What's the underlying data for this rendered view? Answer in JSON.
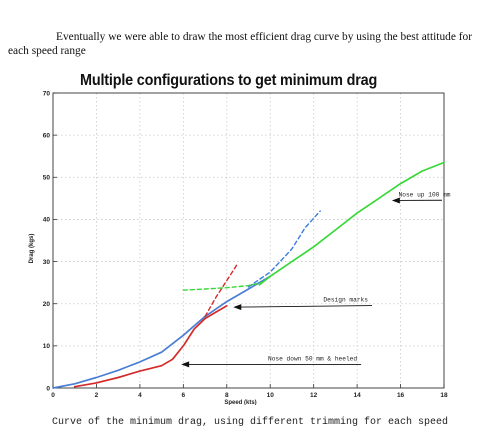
{
  "intro_text": "Eventually we were able to draw the most efficient drag curve by using the best attitude for each speed range",
  "caption": "Curve of the minimum drag, using different trimming for each speed",
  "chart_data": {
    "type": "line",
    "title": "Multiple configurations to get minimum drag",
    "xlabel": "Speed (kts)",
    "ylabel": "Drag (kgs)",
    "xlim": [
      0,
      18
    ],
    "ylim": [
      0,
      70
    ],
    "xticks": [
      0,
      2,
      4,
      6,
      8,
      10,
      12,
      14,
      16,
      18
    ],
    "yticks": [
      0,
      10,
      20,
      30,
      40,
      50,
      60,
      70
    ],
    "grid": true,
    "series": [
      {
        "style": "solid",
        "color": "#4a7ed4",
        "points": [
          [
            0,
            0
          ],
          [
            1,
            1
          ],
          [
            2,
            2.5
          ],
          [
            3,
            4.2
          ],
          [
            4,
            6.2
          ],
          [
            5,
            8.5
          ],
          [
            6,
            12.5
          ],
          [
            7,
            17
          ],
          [
            8,
            20.5
          ],
          [
            9,
            23.5
          ],
          [
            10,
            26.5
          ]
        ]
      },
      {
        "style": "solid",
        "color": "#d42a2a",
        "points": [
          [
            1,
            0.3
          ],
          [
            2,
            1.2
          ],
          [
            3,
            2.5
          ],
          [
            4,
            4
          ],
          [
            5,
            5.3
          ],
          [
            5.5,
            6.8
          ],
          [
            6,
            10
          ],
          [
            6.5,
            14
          ],
          [
            7,
            16.5
          ],
          [
            7.5,
            18
          ],
          [
            8,
            19.5
          ]
        ]
      },
      {
        "style": "solid",
        "color": "#38d838",
        "points": [
          [
            9.5,
            24.5
          ],
          [
            10,
            26.5
          ],
          [
            11,
            30
          ],
          [
            12,
            33.5
          ],
          [
            13,
            37.5
          ],
          [
            14,
            41.5
          ],
          [
            15,
            45
          ],
          [
            16,
            48.5
          ],
          [
            17,
            51.5
          ],
          [
            18,
            53.5
          ]
        ]
      },
      {
        "style": "dashed",
        "color": "#d42a2a",
        "points": [
          [
            7,
            17
          ],
          [
            7.5,
            21.5
          ],
          [
            8,
            25.5
          ],
          [
            8.5,
            29.5
          ]
        ]
      },
      {
        "style": "dashed",
        "color": "#3a7ce0",
        "points": [
          [
            9,
            24
          ],
          [
            10,
            27.5
          ],
          [
            11,
            33
          ],
          [
            11.6,
            38
          ],
          [
            12.3,
            42
          ]
        ]
      },
      {
        "style": "dashed",
        "color": "#38d838",
        "points": [
          [
            6,
            23.2
          ],
          [
            7,
            23.5
          ],
          [
            8,
            23.8
          ],
          [
            9,
            24.3
          ],
          [
            9.6,
            25
          ]
        ]
      }
    ],
    "annotations": [
      {
        "text": "Nose up 100 mm",
        "label_at": [
          18.3,
          45.5
        ],
        "arrow_to": [
          15.6,
          44.5
        ]
      },
      {
        "text": "Design marks",
        "label_at": [
          14.5,
          20.5
        ],
        "arrow_to": [
          8.3,
          19.2
        ]
      },
      {
        "text": "Nose down 50 mm & heeled",
        "label_at": [
          14,
          6.5
        ],
        "arrow_to": [
          5.9,
          5.6
        ]
      }
    ]
  }
}
